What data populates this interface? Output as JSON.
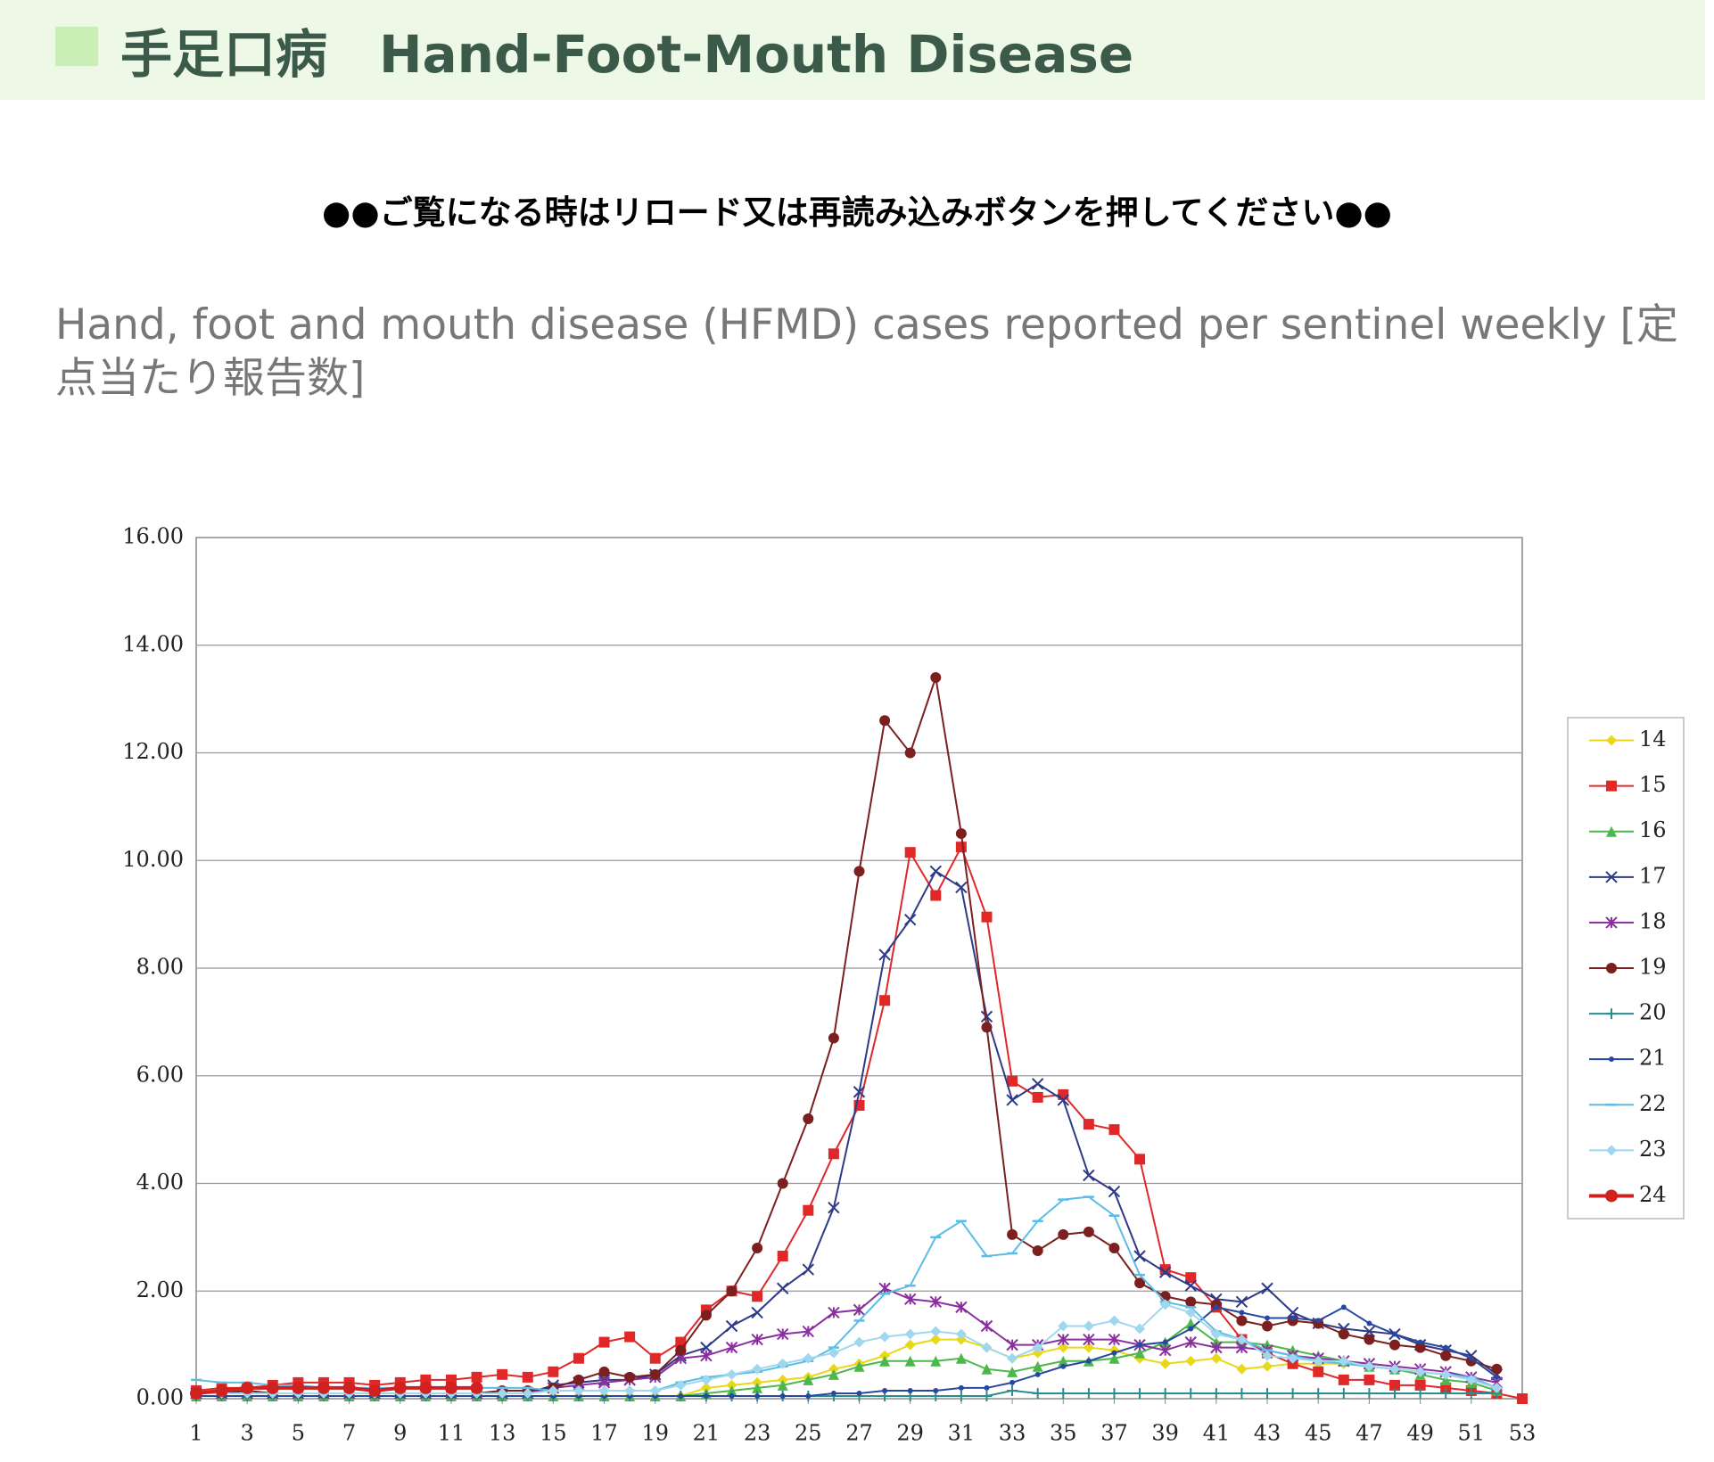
{
  "header": {
    "title": "手足口病　Hand-Foot-Mouth Disease"
  },
  "notice": "●●ご覧になる時はリロード又は再読み込みボタンを押してください●●",
  "chart_data": {
    "type": "line",
    "title": "Hand, foot and mouth disease (HFMD) cases reported per sentinel weekly [定点当たり報告数]",
    "x": [
      1,
      2,
      3,
      4,
      5,
      6,
      7,
      8,
      9,
      10,
      11,
      12,
      13,
      14,
      15,
      16,
      17,
      18,
      19,
      20,
      21,
      22,
      23,
      24,
      25,
      26,
      27,
      28,
      29,
      30,
      31,
      32,
      33,
      34,
      35,
      36,
      37,
      38,
      39,
      40,
      41,
      42,
      43,
      44,
      45,
      46,
      47,
      48,
      49,
      50,
      51,
      52,
      53
    ],
    "xlim": [
      1,
      53
    ],
    "xticks": [
      1,
      3,
      5,
      7,
      9,
      11,
      13,
      15,
      17,
      19,
      21,
      23,
      25,
      27,
      29,
      31,
      33,
      35,
      37,
      39,
      41,
      43,
      45,
      47,
      49,
      51,
      53
    ],
    "ylim": [
      0,
      16
    ],
    "yticks": [
      {
        "value": 0,
        "label": "0.00"
      },
      {
        "value": 2,
        "label": "2.00"
      },
      {
        "value": 4,
        "label": "4.00"
      },
      {
        "value": 6,
        "label": "6.00"
      },
      {
        "value": 8,
        "label": "8.00"
      },
      {
        "value": 10,
        "label": "10.00"
      },
      {
        "value": 12,
        "label": "12.00"
      },
      {
        "value": 14,
        "label": "14.00"
      },
      {
        "value": 16,
        "label": "16.00"
      }
    ],
    "grid": true,
    "legend": "right",
    "series": [
      {
        "name": "14",
        "color": "#e8d81a",
        "marker": "diamond",
        "values": [
          0.05,
          0.05,
          0.05,
          0.05,
          0.05,
          0.05,
          0.05,
          0.05,
          0.05,
          0.05,
          0.05,
          0.05,
          0.05,
          0.05,
          0.05,
          0.05,
          0.05,
          0.05,
          0.05,
          0.05,
          0.2,
          0.25,
          0.3,
          0.35,
          0.4,
          0.55,
          0.65,
          0.8,
          1.0,
          1.1,
          1.1,
          0.95,
          0.75,
          0.85,
          0.95,
          0.95,
          0.9,
          0.75,
          0.65,
          0.7,
          0.75,
          0.55,
          0.6,
          0.65,
          0.65,
          0.65,
          0.6,
          0.55,
          0.5,
          0.45,
          0.35,
          0.2,
          null
        ]
      },
      {
        "name": "15",
        "color": "#e02828",
        "marker": "square",
        "values": [
          0.15,
          0.2,
          0.2,
          0.25,
          0.3,
          0.3,
          0.3,
          0.25,
          0.3,
          0.35,
          0.35,
          0.4,
          0.45,
          0.4,
          0.5,
          0.75,
          1.05,
          1.15,
          0.75,
          1.05,
          1.65,
          2.0,
          1.9,
          2.65,
          3.5,
          4.55,
          5.45,
          7.4,
          10.15,
          9.35,
          10.25,
          8.95,
          5.9,
          5.6,
          5.65,
          5.1,
          5.0,
          4.45,
          2.4,
          2.25,
          1.7,
          1.1,
          0.85,
          0.65,
          0.5,
          0.35,
          0.35,
          0.25,
          0.25,
          0.2,
          0.15,
          0.1,
          0
        ]
      },
      {
        "name": "16",
        "color": "#4cb84c",
        "marker": "triangle",
        "values": [
          0.05,
          0.05,
          0.05,
          0.05,
          0.05,
          0.05,
          0.05,
          0.05,
          0.05,
          0.05,
          0.05,
          0.05,
          0.05,
          0.05,
          0.05,
          0.05,
          0.05,
          0.05,
          0.05,
          0.05,
          0.1,
          0.15,
          0.2,
          0.25,
          0.35,
          0.45,
          0.6,
          0.7,
          0.7,
          0.7,
          0.75,
          0.55,
          0.5,
          0.6,
          0.7,
          0.7,
          0.75,
          0.85,
          1.05,
          1.4,
          1.05,
          1.05,
          1.0,
          0.9,
          0.8,
          0.7,
          0.6,
          0.55,
          0.45,
          0.35,
          0.3,
          0.15,
          null
        ]
      },
      {
        "name": "17",
        "color": "#2e3a87",
        "marker": "x",
        "values": [
          0.1,
          0.1,
          0.1,
          0.1,
          0.1,
          0.1,
          0.1,
          0.1,
          0.1,
          0.1,
          0.1,
          0.1,
          0.1,
          0.1,
          0.25,
          0.3,
          0.35,
          0.35,
          0.45,
          0.8,
          0.95,
          1.35,
          1.6,
          2.05,
          2.4,
          3.55,
          5.7,
          8.25,
          8.9,
          9.8,
          9.5,
          7.1,
          5.55,
          5.85,
          5.55,
          4.15,
          3.85,
          2.65,
          2.35,
          2.1,
          1.85,
          1.8,
          2.05,
          1.6,
          1.4,
          1.3,
          1.25,
          1.2,
          1.0,
          0.9,
          0.8,
          0.45,
          null
        ]
      },
      {
        "name": "18",
        "color": "#8a2f9e",
        "marker": "star",
        "values": [
          0.1,
          0.1,
          0.1,
          0.1,
          0.1,
          0.1,
          0.1,
          0.1,
          0.1,
          0.1,
          0.1,
          0.1,
          0.1,
          0.1,
          0.2,
          0.25,
          0.3,
          0.35,
          0.4,
          0.75,
          0.8,
          0.95,
          1.1,
          1.2,
          1.25,
          1.6,
          1.65,
          2.05,
          1.85,
          1.8,
          1.7,
          1.35,
          1.0,
          1.0,
          1.1,
          1.1,
          1.1,
          1.0,
          0.9,
          1.05,
          0.95,
          0.95,
          0.9,
          0.8,
          0.75,
          0.7,
          0.65,
          0.6,
          0.55,
          0.5,
          0.4,
          0.3,
          null
        ]
      },
      {
        "name": "19",
        "color": "#7b1f1f",
        "marker": "circle",
        "values": [
          0.1,
          0.1,
          0.15,
          0.1,
          0.1,
          0.1,
          0.1,
          0.1,
          0.1,
          0.1,
          0.1,
          0.1,
          0.15,
          0.15,
          0.2,
          0.35,
          0.5,
          0.4,
          0.45,
          0.9,
          1.55,
          2.0,
          2.8,
          4.0,
          5.2,
          6.7,
          9.8,
          12.6,
          12.0,
          13.4,
          10.5,
          6.9,
          3.05,
          2.75,
          3.05,
          3.1,
          2.8,
          2.15,
          1.9,
          1.8,
          1.75,
          1.45,
          1.35,
          1.45,
          1.4,
          1.2,
          1.1,
          1.0,
          0.95,
          0.8,
          0.7,
          0.55,
          null
        ]
      },
      {
        "name": "20",
        "color": "#2a8c8c",
        "marker": "plus",
        "values": [
          0.05,
          0.05,
          0.05,
          0.05,
          0.05,
          0.05,
          0.05,
          0.05,
          0.05,
          0.05,
          0.05,
          0.05,
          0.05,
          0.05,
          0.05,
          0.05,
          0.05,
          0.05,
          0.05,
          0.05,
          0.05,
          0.05,
          0.05,
          0.05,
          0.05,
          0.05,
          0.05,
          0.05,
          0.05,
          0.05,
          0.05,
          0.05,
          0.15,
          0.1,
          0.1,
          0.1,
          0.1,
          0.1,
          0.1,
          0.1,
          0.1,
          0.1,
          0.1,
          0.1,
          0.1,
          0.1,
          0.1,
          0.1,
          0.1,
          0.1,
          0.1,
          0.1,
          null
        ]
      },
      {
        "name": "21",
        "color": "#2848a0",
        "marker": "dot",
        "values": [
          0.05,
          0.05,
          0.05,
          0.05,
          0.05,
          0.05,
          0.05,
          0.05,
          0.05,
          0.05,
          0.05,
          0.05,
          0.05,
          0.05,
          0.05,
          0.05,
          0.05,
          0.05,
          0.05,
          0.05,
          0.05,
          0.05,
          0.05,
          0.05,
          0.05,
          0.1,
          0.1,
          0.15,
          0.15,
          0.15,
          0.2,
          0.2,
          0.3,
          0.45,
          0.6,
          0.7,
          0.85,
          1.0,
          1.05,
          1.3,
          1.7,
          1.6,
          1.5,
          1.5,
          1.45,
          1.7,
          1.4,
          1.2,
          1.05,
          0.95,
          0.75,
          0.4,
          null
        ]
      },
      {
        "name": "22",
        "color": "#5bbde6",
        "marker": "dash",
        "values": [
          0.35,
          0.3,
          0.3,
          0.25,
          0.25,
          0.2,
          0.2,
          0.2,
          0.2,
          0.2,
          0.2,
          0.2,
          0.2,
          0.2,
          0.15,
          0.15,
          0.15,
          0.15,
          0.15,
          0.3,
          0.4,
          0.45,
          0.5,
          0.6,
          0.7,
          0.95,
          1.45,
          1.95,
          2.1,
          3.0,
          3.3,
          2.65,
          2.7,
          3.3,
          3.7,
          3.75,
          3.4,
          2.3,
          1.8,
          1.7,
          1.25,
          1.1,
          0.9,
          0.8,
          0.7,
          0.65,
          0.6,
          0.55,
          0.5,
          0.45,
          0.4,
          0.2,
          null
        ]
      },
      {
        "name": "23",
        "color": "#9fd8ee",
        "marker": "diamond",
        "values": [
          0.1,
          0.1,
          0.1,
          0.1,
          0.1,
          0.1,
          0.1,
          0.1,
          0.1,
          0.1,
          0.1,
          0.1,
          0.1,
          0.1,
          0.15,
          0.15,
          0.15,
          0.15,
          0.15,
          0.25,
          0.35,
          0.45,
          0.55,
          0.65,
          0.75,
          0.85,
          1.05,
          1.15,
          1.2,
          1.25,
          1.2,
          0.95,
          0.75,
          0.95,
          1.35,
          1.35,
          1.45,
          1.3,
          1.75,
          1.6,
          1.2,
          1.1,
          0.8,
          0.75,
          0.7,
          0.7,
          0.6,
          0.55,
          0.5,
          0.45,
          0.35,
          0.2,
          null
        ]
      },
      {
        "name": "24",
        "color": "#d02020",
        "marker": "circle",
        "values": [
          0.1,
          0.15,
          0.2,
          0.2,
          0.2,
          0.2,
          0.2,
          0.15,
          0.2,
          0.2,
          0.2,
          0.2,
          null,
          null,
          null,
          null,
          null,
          null,
          null,
          null,
          null,
          null,
          null,
          null,
          null,
          null,
          null,
          null,
          null,
          null,
          null,
          null,
          null,
          null,
          null,
          null,
          null,
          null,
          null,
          null,
          null,
          null,
          null,
          null,
          null,
          null,
          null,
          null,
          null,
          null,
          null,
          null,
          null
        ]
      }
    ]
  }
}
